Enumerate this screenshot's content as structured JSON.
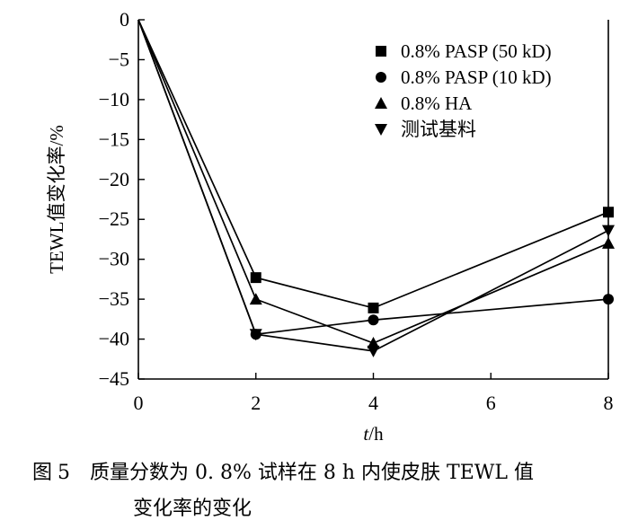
{
  "chart_data": {
    "type": "line",
    "x": [
      0,
      2,
      4,
      8
    ],
    "xlabel_italic": "t",
    "xlabel_unit": "/h",
    "ylabel": "TEWL值变化率/%",
    "xlim": [
      0,
      8
    ],
    "ylim": [
      -45,
      0
    ],
    "xticks": [
      "0",
      "2",
      "4",
      "6",
      "8"
    ],
    "yticks": [
      "0",
      "−5",
      "−10",
      "−15",
      "−20",
      "−25",
      "−30",
      "−35",
      "−40",
      "−45"
    ],
    "grid": false,
    "legend_position": "top-right",
    "series": [
      {
        "name": "0.8% PASP (50 kD)",
        "marker": "square",
        "values": [
          0,
          -32.3,
          -36.1,
          -24.1
        ]
      },
      {
        "name": "0.8% PASP (10 kD)",
        "marker": "circle",
        "values": [
          0,
          -39.4,
          -37.6,
          -35.0
        ]
      },
      {
        "name": "0.8% HA",
        "marker": "triangle-up",
        "values": [
          0,
          -35.0,
          -40.5,
          -28.0
        ]
      },
      {
        "name": "测试基料",
        "marker": "triangle-down",
        "values": [
          0,
          -39.4,
          -41.5,
          -26.4
        ]
      }
    ]
  },
  "caption": {
    "label": "图",
    "number": "5",
    "line1": "质量分数为 0. 8% 试样在 8 h 内使皮肤 TEWL 值",
    "line2": "变化率的变化"
  }
}
